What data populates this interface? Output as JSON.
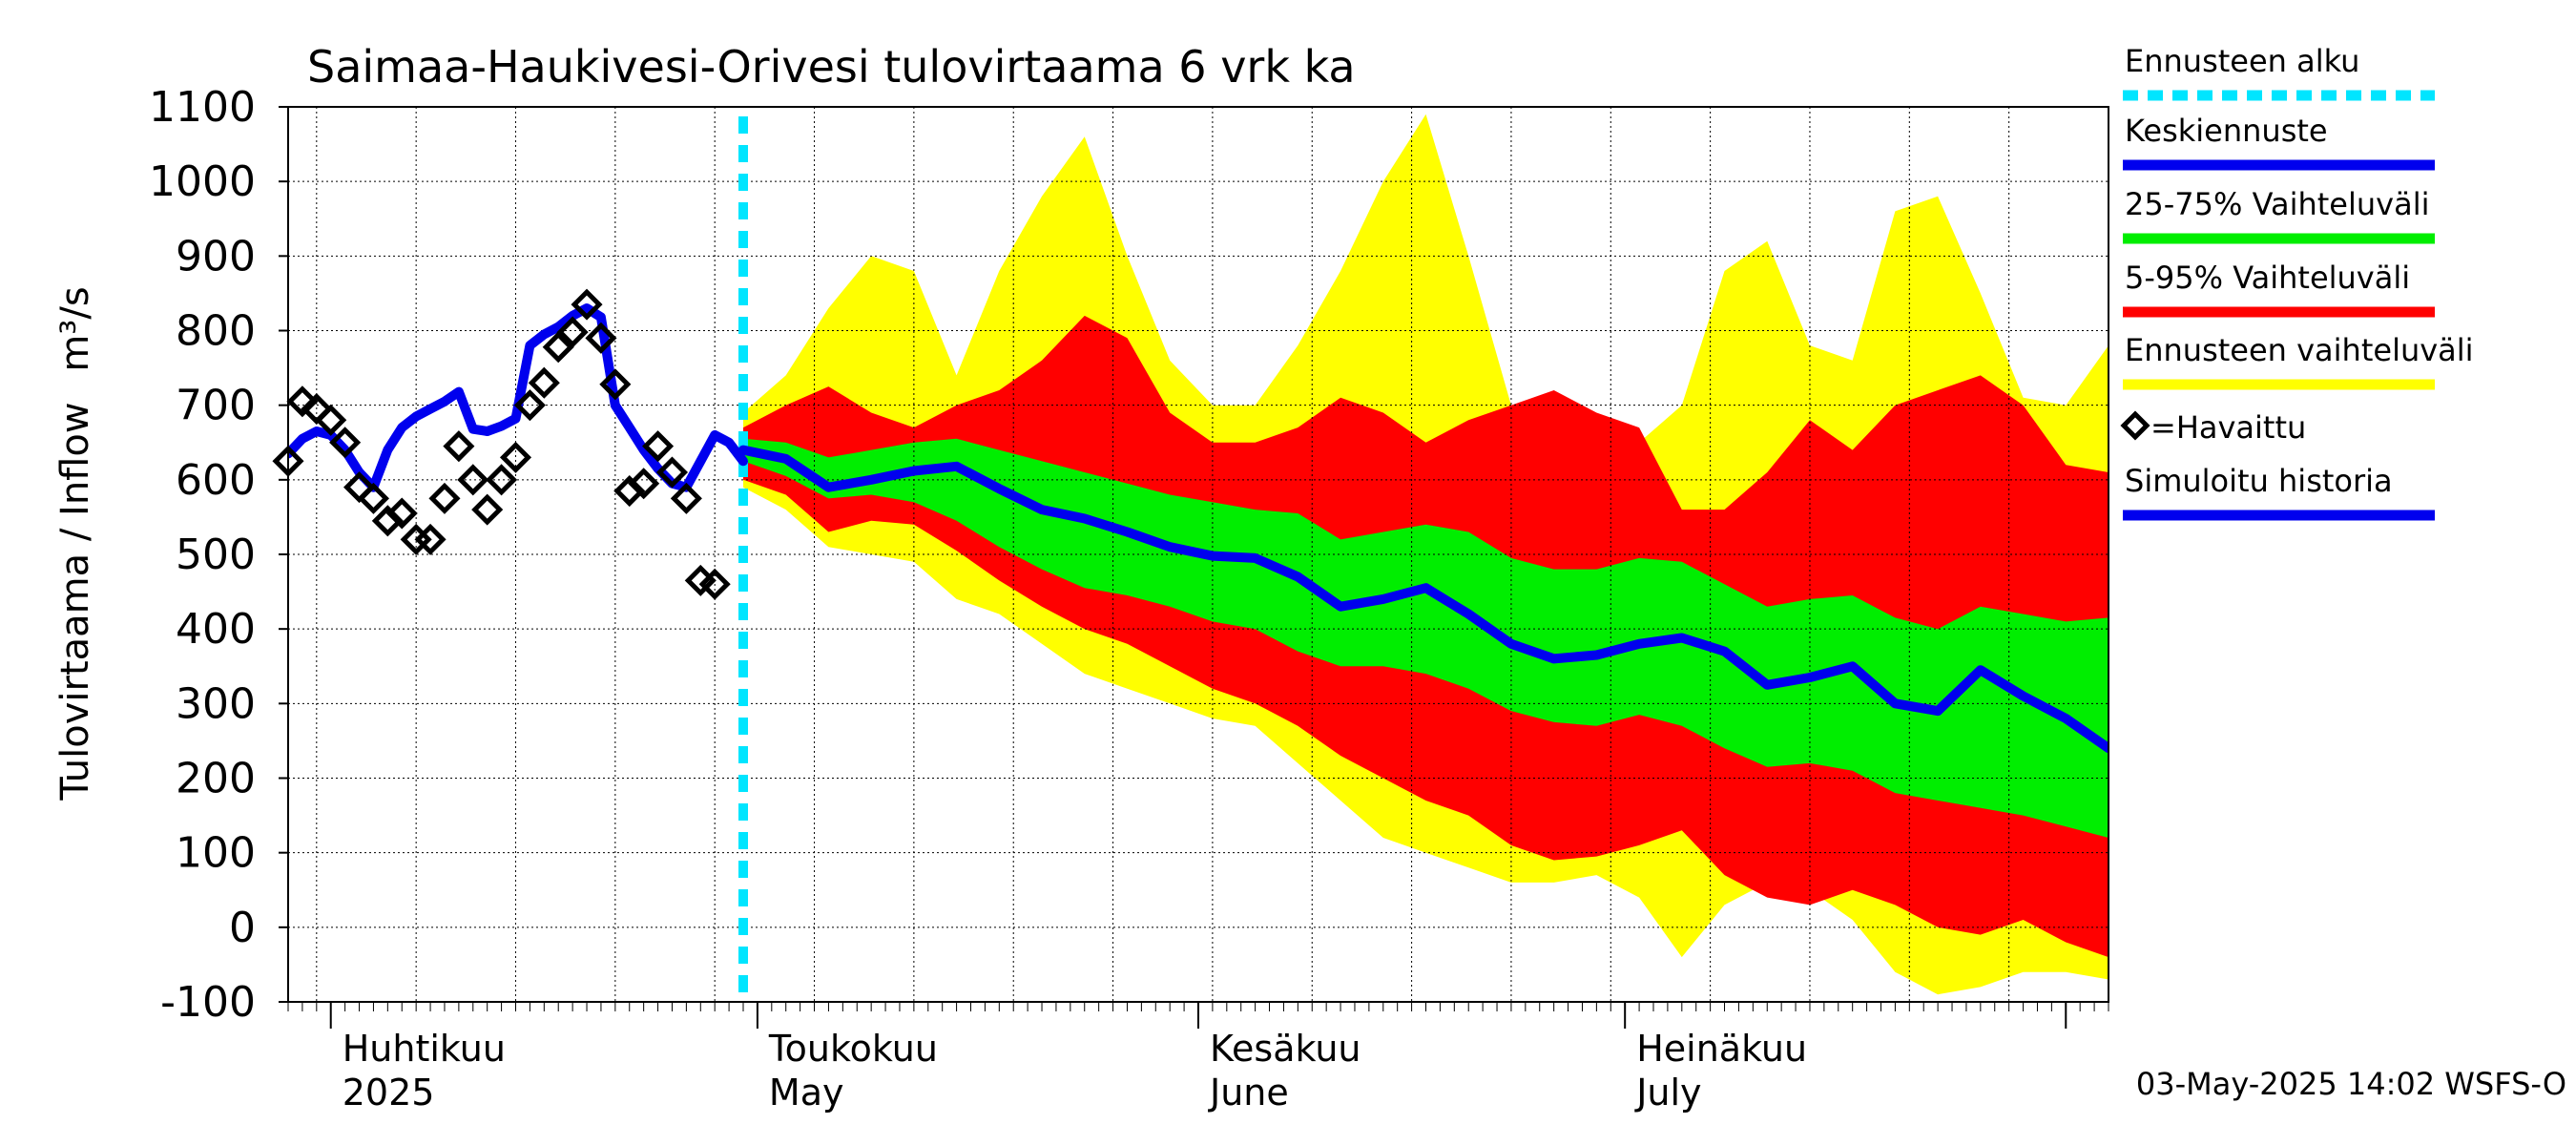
{
  "chart_data": {
    "type": "area",
    "title": "Saimaa-Haukivesi-Orivesi tulovirtaama  6 vrk ka",
    "ylabel": "Tulovirtaama / Inflow",
    "yunit": "m³/s",
    "ylim": [
      -100,
      1100
    ],
    "yticks": [
      -100,
      0,
      100,
      200,
      300,
      400,
      500,
      600,
      700,
      800,
      900,
      1000,
      1100
    ],
    "xlim": [
      "2025-03-29",
      "2025-08-04"
    ],
    "month_labels": [
      {
        "date": "2025-04-01",
        "fi": "Huhtikuu",
        "en": "2025"
      },
      {
        "date": "2025-05-01",
        "fi": "Toukokuu",
        "en": "May"
      },
      {
        "date": "2025-06-01",
        "fi": "Kesäkuu",
        "en": "June"
      },
      {
        "date": "2025-07-01",
        "fi": "Heinäkuu",
        "en": "July"
      }
    ],
    "forecast_start": "2025-04-30",
    "grid": true,
    "legend_position": "right",
    "colors": {
      "forecast_start": "#00e5ff",
      "mean": "#0000ee",
      "p25_75": "#00ee00",
      "p5_95": "#ff0000",
      "range": "#ffff00",
      "simulated": "#0000ee",
      "observed": "#000000"
    },
    "legend": [
      {
        "key": "forecast_start",
        "label": "Ennusteen alku",
        "style": "dashed"
      },
      {
        "key": "mean",
        "label": "Keskiennuste",
        "style": "line"
      },
      {
        "key": "p25_75",
        "label": "25-75% Vaihteluväli",
        "style": "line"
      },
      {
        "key": "p5_95",
        "label": "5-95% Vaihteluväli",
        "style": "line"
      },
      {
        "key": "range",
        "label": "Ennusteen vaihteluväli",
        "style": "line"
      },
      {
        "key": "observed",
        "label": "=Havaittu",
        "style": "diamond"
      },
      {
        "key": "simulated",
        "label": "Simuloitu historia",
        "style": "line"
      }
    ],
    "series": [
      {
        "name": "Simuloitu historia",
        "x": [
          "2025-03-29",
          "2025-03-30",
          "2025-03-31",
          "2025-04-01",
          "2025-04-02",
          "2025-04-03",
          "2025-04-04",
          "2025-04-05",
          "2025-04-06",
          "2025-04-07",
          "2025-04-08",
          "2025-04-09",
          "2025-04-10",
          "2025-04-11",
          "2025-04-12",
          "2025-04-13",
          "2025-04-14",
          "2025-04-15",
          "2025-04-16",
          "2025-04-17",
          "2025-04-18",
          "2025-04-19",
          "2025-04-20",
          "2025-04-21",
          "2025-04-22",
          "2025-04-23",
          "2025-04-24",
          "2025-04-25",
          "2025-04-26",
          "2025-04-27",
          "2025-04-28",
          "2025-04-29",
          "2025-04-30"
        ],
        "values": [
          635,
          655,
          665,
          660,
          640,
          610,
          590,
          640,
          670,
          685,
          695,
          705,
          718,
          668,
          665,
          672,
          682,
          780,
          795,
          805,
          820,
          830,
          818,
          700,
          670,
          640,
          615,
          595,
          590,
          625,
          660,
          650,
          625
        ]
      },
      {
        "name": "=Havaittu",
        "x": [
          "2025-03-29",
          "2025-03-30",
          "2025-03-31",
          "2025-04-01",
          "2025-04-02",
          "2025-04-03",
          "2025-04-04",
          "2025-04-05",
          "2025-04-06",
          "2025-04-07",
          "2025-04-08",
          "2025-04-09",
          "2025-04-10",
          "2025-04-11",
          "2025-04-12",
          "2025-04-13",
          "2025-04-14",
          "2025-04-15",
          "2025-04-16",
          "2025-04-17",
          "2025-04-18",
          "2025-04-19",
          "2025-04-20",
          "2025-04-21",
          "2025-04-22",
          "2025-04-23",
          "2025-04-24",
          "2025-04-25",
          "2025-04-26",
          "2025-04-27",
          "2025-04-28"
        ],
        "values": [
          625,
          705,
          695,
          680,
          650,
          590,
          575,
          545,
          555,
          520,
          520,
          575,
          645,
          600,
          560,
          600,
          630,
          700,
          730,
          778,
          798,
          835,
          790,
          728,
          585,
          595,
          645,
          610,
          575,
          465,
          460
        ]
      },
      {
        "name": "Keskiennuste",
        "x": [
          "2025-04-30",
          "2025-05-03",
          "2025-05-06",
          "2025-05-09",
          "2025-05-12",
          "2025-05-15",
          "2025-05-18",
          "2025-05-21",
          "2025-05-24",
          "2025-05-27",
          "2025-05-30",
          "2025-06-02",
          "2025-06-05",
          "2025-06-08",
          "2025-06-11",
          "2025-06-14",
          "2025-06-17",
          "2025-06-20",
          "2025-06-23",
          "2025-06-26",
          "2025-06-29",
          "2025-07-02",
          "2025-07-05",
          "2025-07-08",
          "2025-07-11",
          "2025-07-14",
          "2025-07-17",
          "2025-07-20",
          "2025-07-23",
          "2025-07-26",
          "2025-07-29",
          "2025-08-01",
          "2025-08-04"
        ],
        "values": [
          640,
          628,
          590,
          600,
          612,
          618,
          588,
          560,
          548,
          530,
          510,
          498,
          495,
          470,
          430,
          440,
          455,
          420,
          380,
          360,
          365,
          380,
          388,
          370,
          325,
          335,
          350,
          300,
          290,
          345,
          310,
          280,
          240
        ]
      },
      {
        "name": "25-75% Vaihteluväli",
        "x": [
          "2025-04-30",
          "2025-05-03",
          "2025-05-06",
          "2025-05-09",
          "2025-05-12",
          "2025-05-15",
          "2025-05-18",
          "2025-05-21",
          "2025-05-24",
          "2025-05-27",
          "2025-05-30",
          "2025-06-02",
          "2025-06-05",
          "2025-06-08",
          "2025-06-11",
          "2025-06-14",
          "2025-06-17",
          "2025-06-20",
          "2025-06-23",
          "2025-06-26",
          "2025-06-29",
          "2025-07-02",
          "2025-07-05",
          "2025-07-08",
          "2025-07-11",
          "2025-07-14",
          "2025-07-17",
          "2025-07-20",
          "2025-07-23",
          "2025-07-26",
          "2025-07-29",
          "2025-08-01",
          "2025-08-04"
        ],
        "low": [
          625,
          605,
          575,
          580,
          570,
          545,
          510,
          480,
          455,
          445,
          430,
          410,
          400,
          370,
          350,
          350,
          340,
          320,
          290,
          275,
          270,
          285,
          270,
          240,
          215,
          220,
          210,
          180,
          170,
          160,
          150,
          135,
          120
        ],
        "high": [
          655,
          650,
          630,
          640,
          650,
          655,
          640,
          625,
          610,
          595,
          580,
          570,
          560,
          555,
          520,
          530,
          540,
          530,
          495,
          480,
          480,
          495,
          490,
          460,
          430,
          440,
          445,
          415,
          400,
          430,
          420,
          410,
          415
        ]
      },
      {
        "name": "5-95% Vaihteluväli",
        "x": [
          "2025-04-30",
          "2025-05-03",
          "2025-05-06",
          "2025-05-09",
          "2025-05-12",
          "2025-05-15",
          "2025-05-18",
          "2025-05-21",
          "2025-05-24",
          "2025-05-27",
          "2025-05-30",
          "2025-06-02",
          "2025-06-05",
          "2025-06-08",
          "2025-06-11",
          "2025-06-14",
          "2025-06-17",
          "2025-06-20",
          "2025-06-23",
          "2025-06-26",
          "2025-06-29",
          "2025-07-02",
          "2025-07-05",
          "2025-07-08",
          "2025-07-11",
          "2025-07-14",
          "2025-07-17",
          "2025-07-20",
          "2025-07-23",
          "2025-07-26",
          "2025-07-29",
          "2025-08-01",
          "2025-08-04"
        ],
        "low": [
          600,
          580,
          530,
          545,
          540,
          505,
          465,
          430,
          400,
          380,
          350,
          320,
          300,
          270,
          230,
          200,
          170,
          150,
          110,
          90,
          95,
          110,
          130,
          70,
          40,
          30,
          50,
          30,
          0,
          -10,
          10,
          -20,
          -40
        ],
        "high": [
          670,
          700,
          725,
          690,
          670,
          700,
          720,
          760,
          820,
          790,
          690,
          650,
          650,
          670,
          710,
          690,
          650,
          680,
          700,
          720,
          690,
          670,
          560,
          560,
          610,
          680,
          640,
          700,
          720,
          740,
          700,
          620,
          610
        ]
      },
      {
        "name": "Ennusteen vaihteluväli",
        "x": [
          "2025-04-30",
          "2025-05-03",
          "2025-05-06",
          "2025-05-09",
          "2025-05-12",
          "2025-05-15",
          "2025-05-18",
          "2025-05-21",
          "2025-05-24",
          "2025-05-27",
          "2025-05-30",
          "2025-06-02",
          "2025-06-05",
          "2025-06-08",
          "2025-06-11",
          "2025-06-14",
          "2025-06-17",
          "2025-06-20",
          "2025-06-23",
          "2025-06-26",
          "2025-06-29",
          "2025-07-02",
          "2025-07-05",
          "2025-07-08",
          "2025-07-11",
          "2025-07-14",
          "2025-07-17",
          "2025-07-20",
          "2025-07-23",
          "2025-07-26",
          "2025-07-29",
          "2025-08-01",
          "2025-08-04"
        ],
        "low": [
          590,
          560,
          510,
          500,
          490,
          440,
          420,
          380,
          340,
          320,
          300,
          280,
          270,
          220,
          170,
          120,
          100,
          80,
          60,
          60,
          70,
          40,
          -40,
          30,
          60,
          50,
          10,
          -60,
          -90,
          -80,
          -60,
          -60,
          -70
        ],
        "high": [
          690,
          740,
          830,
          900,
          880,
          740,
          880,
          980,
          1060,
          900,
          760,
          700,
          700,
          780,
          880,
          1000,
          1090,
          900,
          700,
          680,
          670,
          650,
          700,
          880,
          920,
          780,
          760,
          960,
          980,
          850,
          710,
          700,
          780
        ]
      }
    ],
    "timestamp": "03-May-2025 14:02 WSFS-O"
  }
}
